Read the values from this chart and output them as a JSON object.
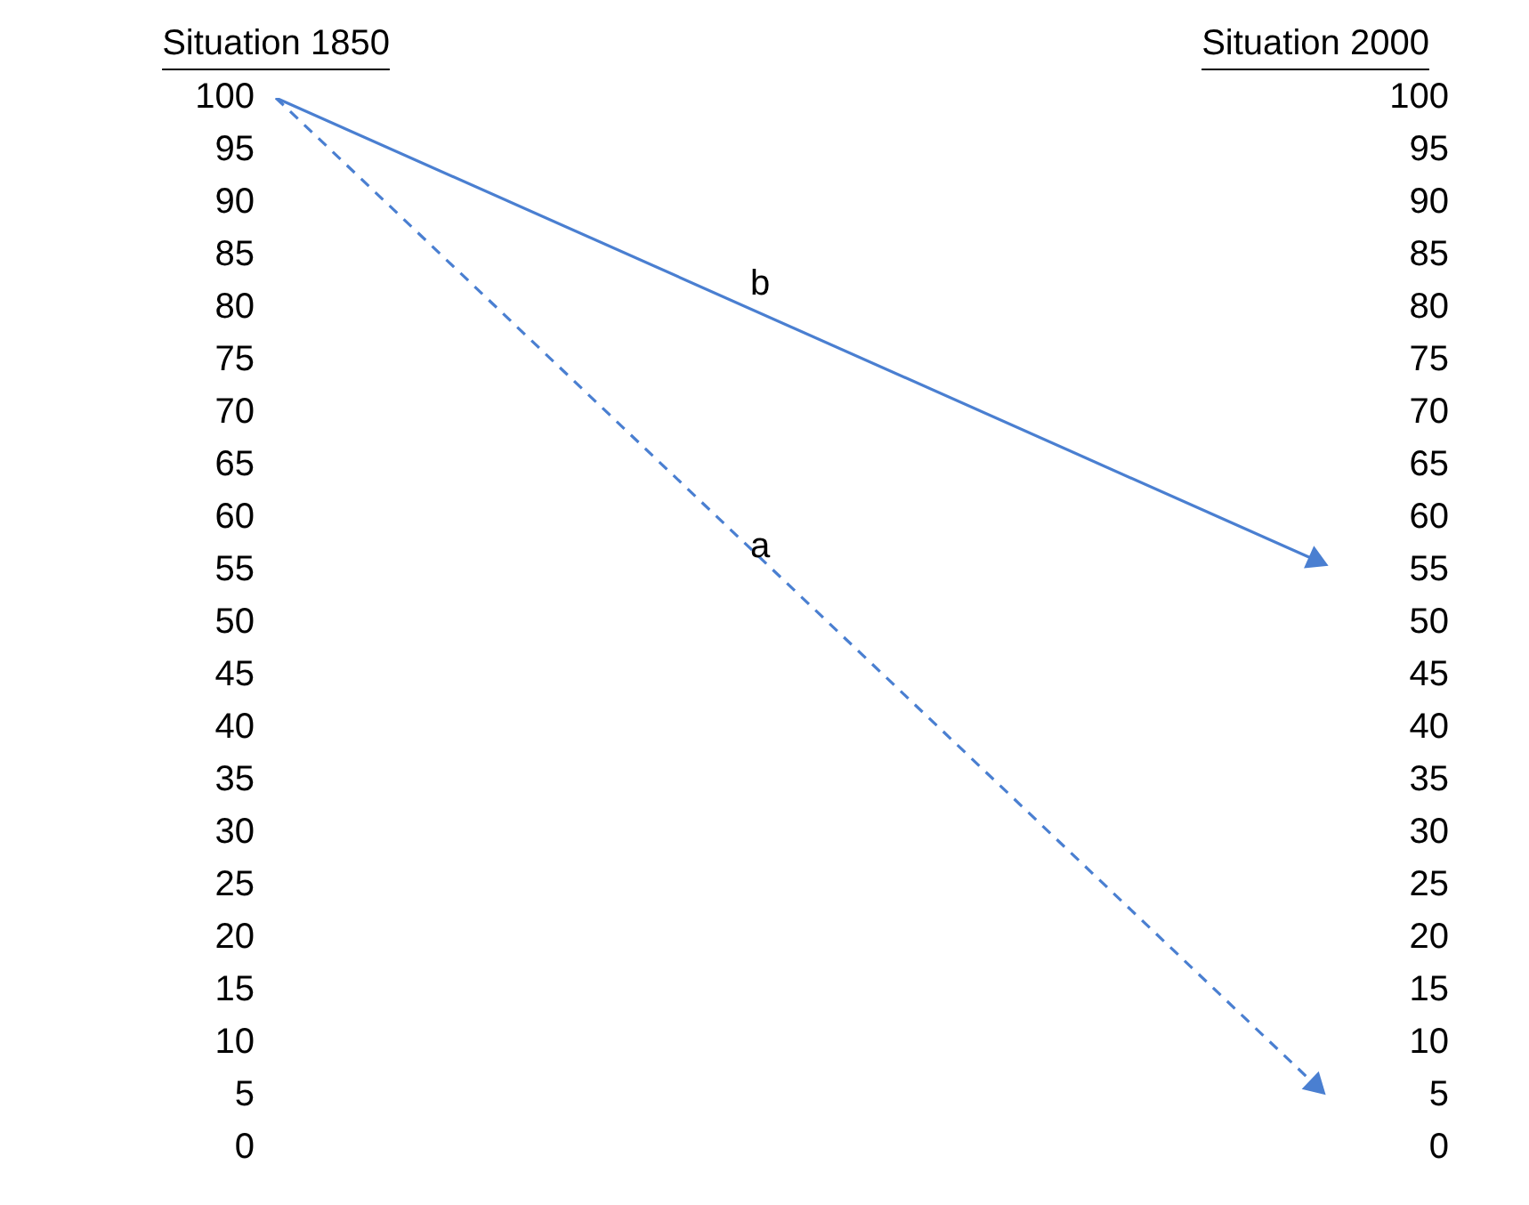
{
  "chart_data": {
    "type": "line",
    "categories": [
      "Situation 1850",
      "Situation 2000"
    ],
    "series": [
      {
        "name": "b",
        "color": "#4a7fd1",
        "values": [
          100,
          56
        ],
        "line_style": "solid"
      },
      {
        "name": "a",
        "color": "#4a7fd1",
        "values": [
          100,
          6
        ],
        "line_style": "dashed"
      }
    ],
    "ylim": [
      0,
      100
    ],
    "yticks": [
      0,
      5,
      10,
      15,
      20,
      25,
      30,
      35,
      40,
      45,
      50,
      55,
      60,
      65,
      70,
      75,
      80,
      85,
      90,
      95,
      100
    ],
    "y2lim": [
      0,
      100
    ],
    "y2ticks": [
      0,
      5,
      10,
      15,
      20,
      25,
      30,
      35,
      40,
      45,
      50,
      55,
      60,
      65,
      70,
      75,
      80,
      85,
      90,
      95,
      100
    ],
    "grid": false,
    "legend": false,
    "marker": "triangle"
  }
}
